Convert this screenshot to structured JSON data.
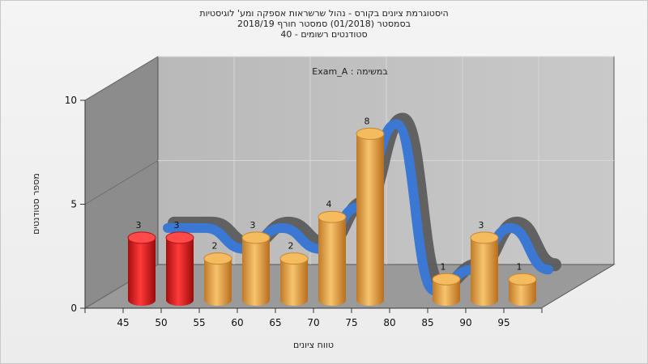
{
  "chart_data": {
    "type": "bar",
    "title_lines": [
      "היסטוגרמת ציונים בקורס - נהול שרשראות אספקה ומע' לוגיסטיות",
      "בסמסטר  (01/2018)  סמסטר חורף  2018/19",
      "סטודנטים רשומים - 40"
    ],
    "annotation": "במשימה : Exam_A",
    "xlabel": "טווח ציונים",
    "ylabel": "מספר סטודנטים",
    "x_ticks": [
      "45",
      "50",
      "55",
      "60",
      "65",
      "70",
      "75",
      "80",
      "85",
      "90",
      "95"
    ],
    "y_ticks": [
      "0",
      "5",
      "10"
    ],
    "ylim": [
      0,
      10
    ],
    "bins": [
      {
        "x": "45",
        "value": 3,
        "label": "3",
        "color": "#e02020"
      },
      {
        "x": "50",
        "value": 3,
        "label": "3",
        "color": "#e02020"
      },
      {
        "x": "55",
        "value": 2,
        "label": "2",
        "color": "#e8a84a"
      },
      {
        "x": "60",
        "value": 3,
        "label": "3",
        "color": "#e8a84a"
      },
      {
        "x": "65",
        "value": 2,
        "label": "2",
        "color": "#e8a84a"
      },
      {
        "x": "70",
        "value": 4,
        "label": "4",
        "color": "#e8a84a"
      },
      {
        "x": "75",
        "value": 8,
        "label": "8",
        "color": "#e8a84a"
      },
      {
        "x": "80",
        "value": 0,
        "label": "",
        "color": "#e8a84a"
      },
      {
        "x": "85",
        "value": 1,
        "label": "1",
        "color": "#e8a84a"
      },
      {
        "x": "90",
        "value": 3,
        "label": "3",
        "color": "#e8a84a"
      },
      {
        "x": "95",
        "value": 1,
        "label": "1",
        "color": "#e8a84a"
      }
    ],
    "curve_colors": {
      "front": "#3a78d4",
      "back": "#5c5c5c"
    },
    "grid": true
  }
}
